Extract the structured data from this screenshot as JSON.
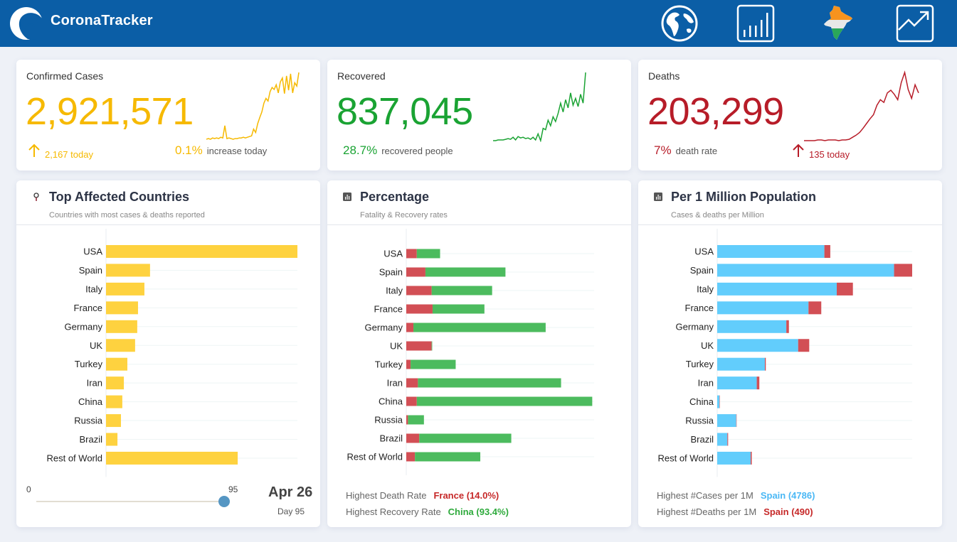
{
  "header": {
    "brand": "CoronaTracker",
    "nav": [
      {
        "icon": "globe-icon"
      },
      {
        "icon": "bar-chart-icon"
      },
      {
        "icon": "india-map-icon"
      },
      {
        "icon": "trend-up-icon"
      }
    ],
    "colors": {
      "bar": "#0b5ea6"
    }
  },
  "stats": {
    "confirmed": {
      "title": "Confirmed Cases",
      "value": "2,921,571",
      "today": "2,167 today",
      "pct": "0.1%",
      "pct_label": "increase today",
      "color": "#f6b900",
      "trend": [
        0.02,
        0.03,
        0.02,
        0.04,
        0.03,
        0.04,
        0.03,
        0.05,
        0.04,
        0.22,
        0.03,
        0.04,
        0.03,
        0.02,
        0.03,
        0.03,
        0.04,
        0.04,
        0.05,
        0.04,
        0.05,
        0.06,
        0.07,
        0.17,
        0.12,
        0.25,
        0.34,
        0.42,
        0.55,
        0.62,
        0.58,
        0.72,
        0.78,
        0.75,
        0.82,
        0.7,
        0.86,
        0.92,
        0.69,
        0.95,
        0.74,
        0.98,
        0.7,
        0.85,
        0.8,
        1.0
      ]
    },
    "recovered": {
      "title": "Recovered",
      "value": "837,045",
      "pct": "28.7%",
      "pct_label": "recovered people",
      "color": "#1aa333",
      "trend": [
        0.0,
        0.0,
        0.01,
        0.01,
        0.01,
        0.02,
        0.03,
        0.02,
        0.05,
        0.01,
        0.06,
        0.04,
        0.05,
        0.03,
        0.04,
        0.02,
        0.05,
        0.01,
        0.1,
        0.0,
        0.18,
        0.16,
        0.3,
        0.22,
        0.35,
        0.28,
        0.4,
        0.55,
        0.42,
        0.6,
        0.48,
        0.7,
        0.52,
        0.62,
        0.5,
        0.68,
        0.55,
        1.0
      ]
    },
    "deaths": {
      "title": "Deaths",
      "value": "203,299",
      "today": "135 today",
      "pct": "7%",
      "pct_label": "death rate",
      "color": "#b71c28",
      "trend": [
        0.0,
        0.0,
        0.0,
        0.0,
        0.01,
        0.01,
        0.0,
        0.01,
        0.01,
        0.01,
        0.0,
        0.01,
        0.01,
        0.02,
        0.05,
        0.08,
        0.12,
        0.18,
        0.25,
        0.32,
        0.38,
        0.52,
        0.6,
        0.56,
        0.7,
        0.74,
        0.68,
        0.6,
        0.85,
        1.0,
        0.75,
        0.62,
        0.82,
        0.7
      ]
    }
  },
  "panels": {
    "top": {
      "title": "Top Affected Countries",
      "subtitle": "Countries with most cases & deaths reported",
      "icon": "pin-icon",
      "slider": {
        "min": "0",
        "max": "95",
        "value": 95
      },
      "date": "Apr 26",
      "day": "Day 95"
    },
    "percentage": {
      "title": "Percentage",
      "subtitle": "Fatality & Recovery rates",
      "icon": "bar-chart-icon",
      "foot": [
        {
          "label": "Highest Death Rate",
          "value": "France (14.0%)",
          "color": "#c62828"
        },
        {
          "label": "Highest Recovery Rate",
          "value": "China (93.4%)",
          "color": "#2eaa3c"
        }
      ]
    },
    "permillion": {
      "title": "Per 1 Million Population",
      "subtitle": "Cases & deaths per Million",
      "icon": "bar-chart-icon",
      "foot": [
        {
          "label": "Highest #Cases per 1M",
          "value": "Spain (4786)",
          "color": "#4bb8f5"
        },
        {
          "label": "Highest #Deaths per 1M",
          "value": "Spain (490)",
          "color": "#c62828"
        }
      ]
    }
  },
  "chart_data": [
    {
      "type": "bar",
      "orientation": "horizontal",
      "grid": true,
      "categories": [
        "USA",
        "Spain",
        "Italy",
        "France",
        "Germany",
        "UK",
        "Turkey",
        "Iran",
        "China",
        "Russia",
        "Brazil",
        "Rest of World"
      ],
      "series": [
        {
          "values": [
            987000,
            227000,
            198000,
            165000,
            161000,
            150000,
            110000,
            92000,
            84000,
            77000,
            59000,
            679000
          ],
          "color": "#fed23f"
        }
      ],
      "xlim": [
        0,
        987000
      ]
    },
    {
      "type": "bar",
      "stacked": true,
      "orientation": "horizontal",
      "grid": true,
      "categories": [
        "USA",
        "Spain",
        "Italy",
        "France",
        "Germany",
        "UK",
        "Turkey",
        "Iran",
        "China",
        "Russia",
        "Brazil",
        "Rest of World"
      ],
      "series": [
        {
          "values": [
            5.6,
            10.2,
            13.5,
            14.0,
            3.8,
            13.5,
            2.3,
            6.2,
            5.6,
            0.9,
            6.9,
            4.6
          ],
          "color": "#d24f55"
        },
        {
          "values": [
            12.4,
            42.6,
            32.2,
            27.6,
            70.4,
            0.3,
            24.0,
            76.2,
            93.4,
            8.5,
            49.0,
            34.8
          ],
          "color": "#4cbb5e"
        }
      ],
      "xlim": [
        0,
        100
      ]
    },
    {
      "type": "bar",
      "stacked": true,
      "orientation": "horizontal",
      "grid": true,
      "categories": [
        "USA",
        "Spain",
        "Italy",
        "France",
        "Germany",
        "UK",
        "Turkey",
        "Iran",
        "China",
        "Russia",
        "Brazil",
        "Rest of World"
      ],
      "series": [
        {
          "values": [
            2900,
            4786,
            3235,
            2470,
            1870,
            2190,
            1290,
            1070,
            58,
            515,
            275,
            905
          ],
          "color": "#62cdfc"
        },
        {
          "values": [
            160,
            490,
            437,
            346,
            70,
            300,
            25,
            70,
            3,
            5,
            20,
            30
          ],
          "color": "#d24f55"
        }
      ],
      "xlim": [
        0,
        5276
      ]
    }
  ]
}
